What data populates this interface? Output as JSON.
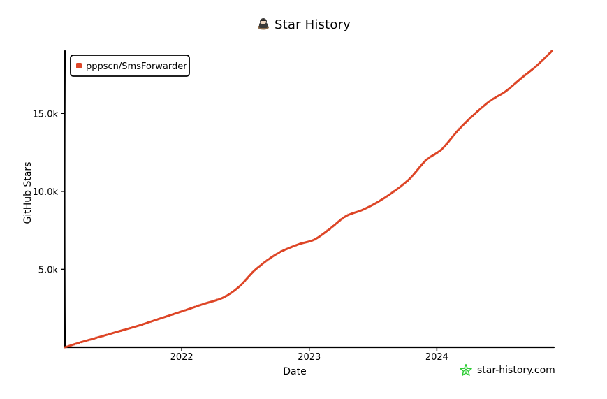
{
  "colors": {
    "series": "#dd4528",
    "axis": "#000000",
    "watermark_star": "#2bcc32"
  },
  "icons": {
    "title": "octocat-avatar-icon",
    "watermark": "star-outline-icon"
  },
  "watermark": {
    "text": "star-history.com"
  },
  "chart_data": {
    "type": "line",
    "title": "Star History",
    "xlabel": "Date",
    "ylabel": "GitHub Stars",
    "x_tick_labels": [
      "2022",
      "2023",
      "2024"
    ],
    "x_ticks": [
      "2022-01-01",
      "2023-01-01",
      "2024-01-01"
    ],
    "y_tick_labels": [
      "5.0k",
      "10.0k",
      "15.0k"
    ],
    "y_ticks": [
      5000,
      10000,
      15000
    ],
    "xlim": [
      "2021-02-01",
      "2024-12-01"
    ],
    "ylim": [
      0,
      19000
    ],
    "grid": false,
    "legend": "top-left",
    "series": [
      {
        "name": "pppscn/SmsForwarder",
        "x": [
          "2021-02-01",
          "2021-03-15",
          "2021-05-01",
          "2021-07-01",
          "2021-09-01",
          "2021-11-01",
          "2022-01-01",
          "2022-03-01",
          "2022-05-01",
          "2022-06-15",
          "2022-08-01",
          "2022-10-01",
          "2022-12-01",
          "2023-01-15",
          "2023-03-01",
          "2023-04-15",
          "2023-06-01",
          "2023-07-15",
          "2023-09-01",
          "2023-10-15",
          "2023-12-01",
          "2024-01-15",
          "2024-03-01",
          "2024-04-15",
          "2024-06-01",
          "2024-07-15",
          "2024-09-01",
          "2024-10-15",
          "2024-11-25"
        ],
        "y": [
          0,
          300,
          600,
          1000,
          1400,
          1850,
          2300,
          2750,
          3200,
          3900,
          5000,
          6000,
          6600,
          6900,
          7600,
          8400,
          8800,
          9300,
          10000,
          10800,
          12000,
          12700,
          13900,
          14900,
          15800,
          16400,
          17300,
          18100,
          19000
        ]
      }
    ]
  }
}
